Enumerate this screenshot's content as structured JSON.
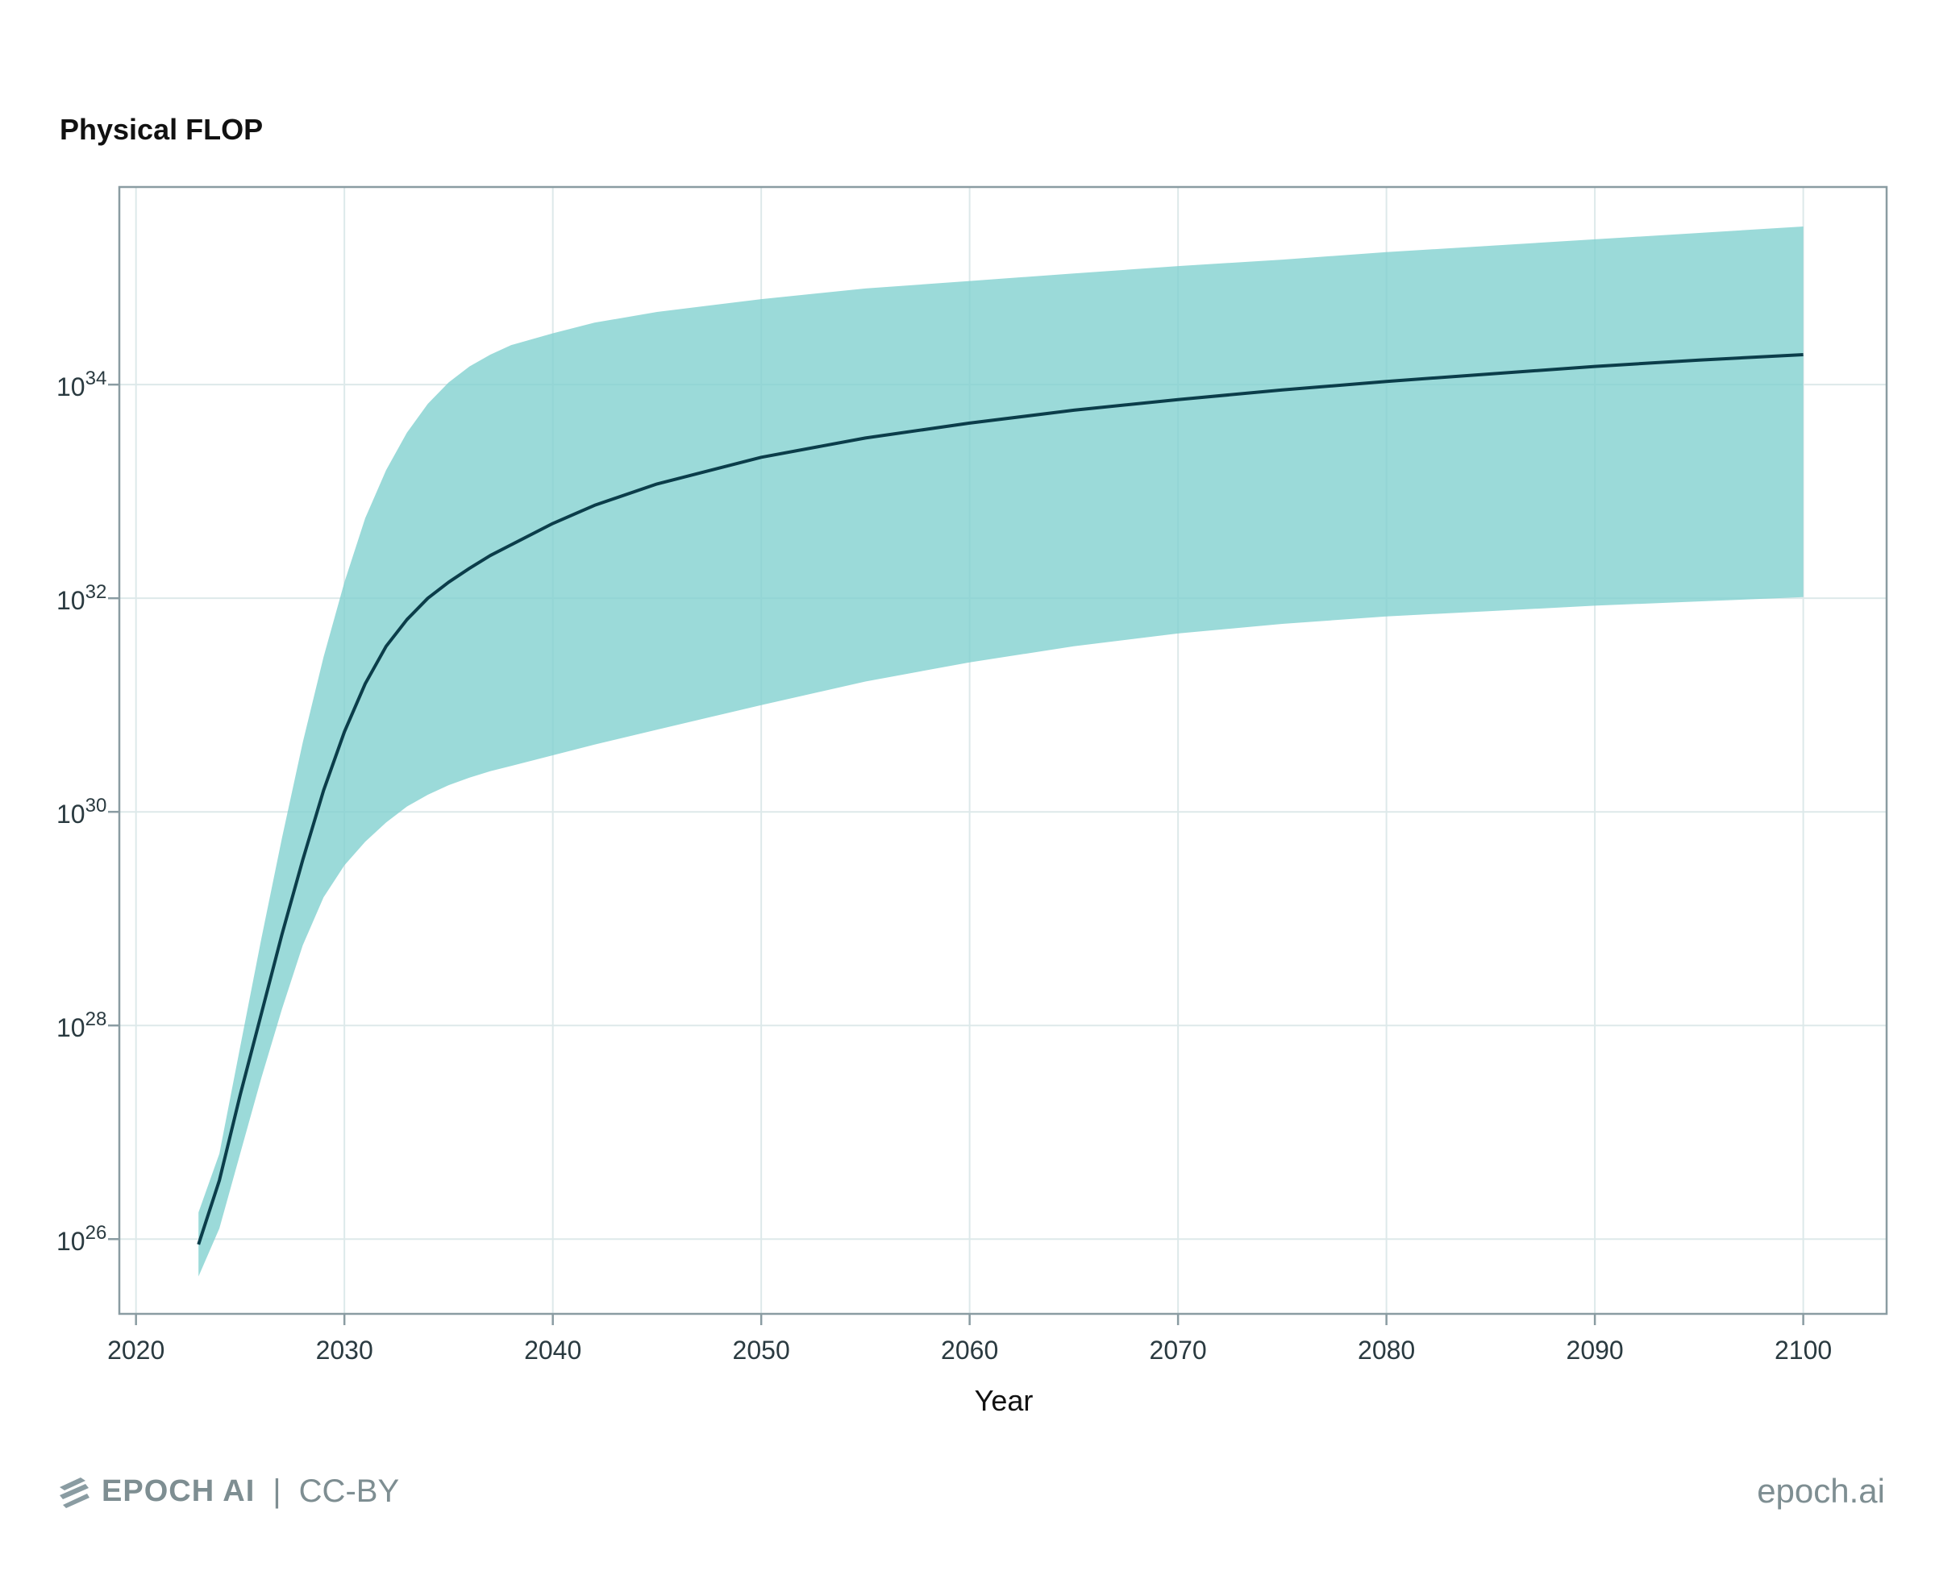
{
  "chart_data": {
    "type": "area",
    "title": "Physical FLOP",
    "xlabel": "Year",
    "ylabel": "",
    "yscale": "log",
    "xlim": [
      2019.2,
      2104
    ],
    "ylim": [
      25.3,
      35.85
    ],
    "xticks": [
      2020,
      2030,
      2040,
      2050,
      2060,
      2070,
      2080,
      2090,
      2100
    ],
    "xtick_labels": [
      "2020",
      "2030",
      "2040",
      "2050",
      "2060",
      "2070",
      "2080",
      "2090",
      "2100"
    ],
    "yticks": [
      26,
      28,
      30,
      32,
      34
    ],
    "ytick_labels": [
      {
        "base": "10",
        "exp": "26"
      },
      {
        "base": "10",
        "exp": "28"
      },
      {
        "base": "10",
        "exp": "30"
      },
      {
        "base": "10",
        "exp": "32"
      },
      {
        "base": "10",
        "exp": "34"
      }
    ],
    "grid": true,
    "colors": {
      "median": "#0b3d4a",
      "band": "#7fcfce",
      "grid": "#dde9ea",
      "frame": "#8a9ca2"
    },
    "x": [
      2023,
      2024,
      2025,
      2026,
      2027,
      2028,
      2029,
      2030,
      2031,
      2032,
      2033,
      2034,
      2035,
      2036,
      2037,
      2038,
      2040,
      2042,
      2045,
      2050,
      2055,
      2060,
      2065,
      2070,
      2075,
      2080,
      2085,
      2090,
      2095,
      2100
    ],
    "series": [
      {
        "kind": "median",
        "values": [
          25.95,
          26.55,
          27.35,
          28.1,
          28.85,
          29.55,
          30.2,
          30.75,
          31.2,
          31.55,
          31.8,
          32.0,
          32.15,
          32.28,
          32.4,
          32.5,
          32.7,
          32.87,
          33.07,
          33.32,
          33.5,
          33.64,
          33.76,
          33.86,
          33.95,
          34.03,
          34.1,
          34.17,
          34.23,
          34.28
        ]
      },
      {
        "kind": "band-upper",
        "values": [
          26.25,
          26.8,
          27.8,
          28.8,
          29.75,
          30.65,
          31.45,
          32.15,
          32.75,
          33.2,
          33.55,
          33.82,
          34.02,
          34.17,
          34.28,
          34.37,
          34.48,
          34.58,
          34.68,
          34.8,
          34.9,
          34.97,
          35.04,
          35.11,
          35.17,
          35.24,
          35.3,
          35.36,
          35.42,
          35.48
        ]
      },
      {
        "kind": "band-lower",
        "values": [
          25.65,
          26.1,
          26.8,
          27.5,
          28.15,
          28.75,
          29.2,
          29.5,
          29.72,
          29.9,
          30.05,
          30.16,
          30.25,
          30.32,
          30.38,
          30.43,
          30.53,
          30.63,
          30.77,
          31.0,
          31.22,
          31.4,
          31.55,
          31.67,
          31.76,
          31.83,
          31.88,
          31.93,
          31.97,
          32.01
        ]
      }
    ]
  },
  "footer": {
    "brand": "EPOCH AI",
    "separator": "|",
    "license": "CC-BY",
    "site": "epoch.ai",
    "logo_icon": "epoch-stripes-icon"
  }
}
